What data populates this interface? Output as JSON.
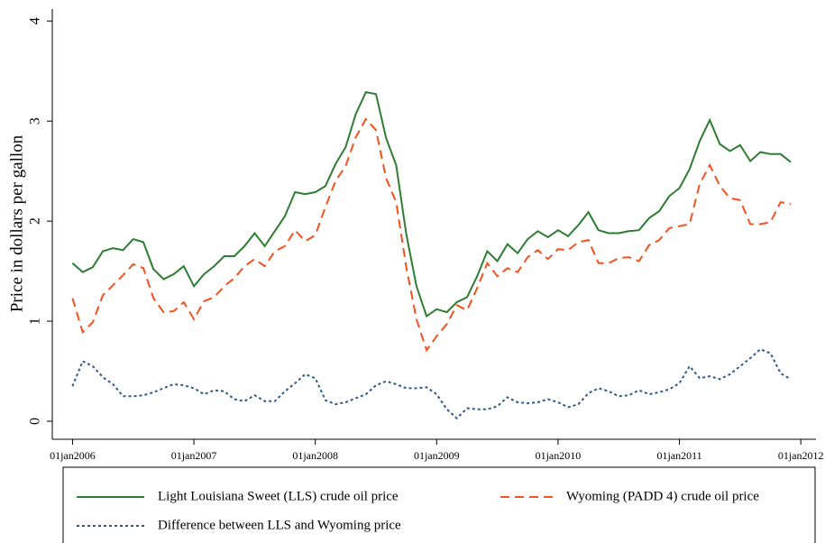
{
  "chart_data": {
    "type": "line",
    "ylabel": "Price in dollars per gallon",
    "x": [
      0,
      1,
      2,
      3,
      4,
      5,
      6,
      7,
      8,
      9,
      10,
      11,
      12,
      13,
      14,
      15,
      16,
      17,
      18,
      19,
      20,
      21,
      22,
      23,
      24,
      25,
      26,
      27,
      28,
      29,
      30,
      31,
      32,
      33,
      34,
      35,
      36,
      37,
      38,
      39,
      40,
      41,
      42,
      43,
      44,
      45,
      46,
      47,
      48,
      49,
      50,
      51,
      52,
      53,
      54,
      55,
      56,
      57,
      58,
      59,
      60,
      61,
      62,
      63,
      64,
      65,
      66,
      67,
      68,
      69,
      70,
      71
    ],
    "xlim": [
      -2,
      73.5
    ],
    "xticks": [
      {
        "value": 0,
        "label": "01jan2006"
      },
      {
        "value": 12,
        "label": "01jan2007"
      },
      {
        "value": 24,
        "label": "01jan2008"
      },
      {
        "value": 36,
        "label": "01jan2009"
      },
      {
        "value": 48,
        "label": "01jan2010"
      },
      {
        "value": 60,
        "label": "01jan2011"
      },
      {
        "value": 72,
        "label": "01jan2012"
      }
    ],
    "ylim": [
      -0.18,
      4.12
    ],
    "yticks": [
      0,
      1,
      2,
      3,
      4
    ],
    "legend": "bottom",
    "series": [
      {
        "name": "Light Louisiana Sweet (LLS) crude oil price",
        "color": "#2e7d32",
        "dash": "none",
        "values": [
          1.58,
          1.49,
          1.54,
          1.7,
          1.73,
          1.71,
          1.82,
          1.79,
          1.52,
          1.42,
          1.47,
          1.55,
          1.35,
          1.47,
          1.55,
          1.65,
          1.65,
          1.75,
          1.88,
          1.75,
          1.9,
          2.05,
          2.29,
          2.27,
          2.29,
          2.35,
          2.57,
          2.74,
          3.07,
          3.29,
          3.27,
          2.83,
          2.56,
          1.87,
          1.35,
          1.05,
          1.12,
          1.09,
          1.19,
          1.24,
          1.45,
          1.7,
          1.6,
          1.77,
          1.68,
          1.82,
          1.9,
          1.84,
          1.91,
          1.85,
          1.96,
          2.09,
          1.91,
          1.88,
          1.88,
          1.9,
          1.91,
          2.03,
          2.1,
          2.25,
          2.33,
          2.52,
          2.8,
          3.01,
          2.77,
          2.7,
          2.76,
          2.6,
          2.69,
          2.67,
          2.67,
          2.59
        ]
      },
      {
        "name": "Wyoming (PADD 4) crude oil price",
        "color": "#f4511e",
        "dash": "10,6",
        "values": [
          1.23,
          0.89,
          0.99,
          1.26,
          1.36,
          1.46,
          1.57,
          1.53,
          1.23,
          1.09,
          1.1,
          1.19,
          1.02,
          1.2,
          1.24,
          1.35,
          1.43,
          1.55,
          1.62,
          1.55,
          1.7,
          1.75,
          1.91,
          1.8,
          1.86,
          2.14,
          2.4,
          2.55,
          2.84,
          3.02,
          2.91,
          2.43,
          2.19,
          1.54,
          1.02,
          0.71,
          0.85,
          0.97,
          1.16,
          1.11,
          1.33,
          1.58,
          1.45,
          1.53,
          1.49,
          1.64,
          1.71,
          1.62,
          1.72,
          1.71,
          1.79,
          1.81,
          1.58,
          1.58,
          1.63,
          1.64,
          1.6,
          1.76,
          1.81,
          1.93,
          1.95,
          1.97,
          2.37,
          2.56,
          2.35,
          2.23,
          2.21,
          1.97,
          1.97,
          1.99,
          2.19,
          2.17
        ]
      },
      {
        "name": "Difference between LLS and Wyoming price",
        "color": "#2b5a8a",
        "dash": "3,3",
        "values": [
          0.35,
          0.6,
          0.55,
          0.44,
          0.37,
          0.25,
          0.25,
          0.26,
          0.29,
          0.33,
          0.37,
          0.36,
          0.33,
          0.27,
          0.31,
          0.3,
          0.22,
          0.2,
          0.26,
          0.2,
          0.2,
          0.3,
          0.38,
          0.47,
          0.43,
          0.21,
          0.17,
          0.19,
          0.23,
          0.27,
          0.36,
          0.4,
          0.37,
          0.33,
          0.33,
          0.34,
          0.27,
          0.12,
          0.03,
          0.13,
          0.12,
          0.12,
          0.15,
          0.24,
          0.19,
          0.18,
          0.19,
          0.22,
          0.19,
          0.14,
          0.17,
          0.28,
          0.33,
          0.3,
          0.25,
          0.26,
          0.31,
          0.27,
          0.29,
          0.32,
          0.38,
          0.55,
          0.43,
          0.45,
          0.42,
          0.47,
          0.55,
          0.63,
          0.72,
          0.68,
          0.48,
          0.42
        ]
      }
    ]
  }
}
